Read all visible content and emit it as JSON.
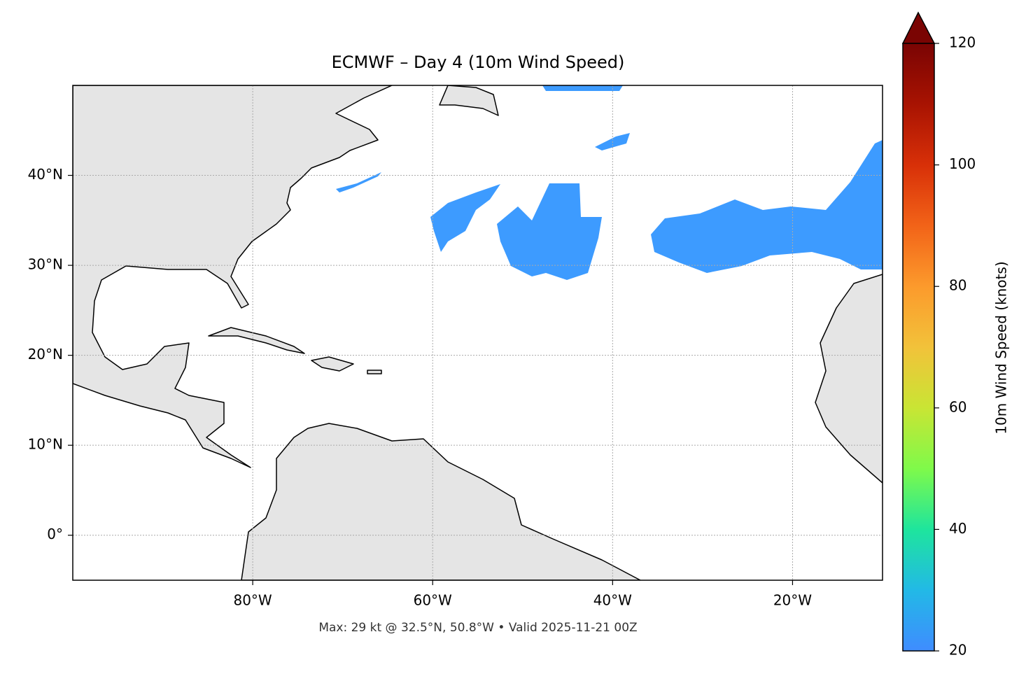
{
  "chart_data": {
    "type": "map",
    "title": "ECMWF – Day 4 (10m Wind Speed)",
    "annotation": "Max: 29 kt @ 32.5°N, 50.8°W • Valid 2025-11-21 00Z",
    "colorbar_label": "10m Wind Speed (knots)",
    "xlim": [
      -100,
      -10
    ],
    "ylim": [
      -5,
      50
    ],
    "xticks": [
      {
        "value": -80,
        "label": "80°W"
      },
      {
        "value": -60,
        "label": "60°W"
      },
      {
        "value": -40,
        "label": "40°W"
      },
      {
        "value": -20,
        "label": "20°W"
      }
    ],
    "yticks": [
      {
        "value": 0,
        "label": "0°"
      },
      {
        "value": 10,
        "label": "10°N"
      },
      {
        "value": 20,
        "label": "20°N"
      },
      {
        "value": 30,
        "label": "30°N"
      },
      {
        "value": 40,
        "label": "40°N"
      }
    ],
    "clim": [
      20,
      120
    ],
    "cticks": [
      20,
      40,
      60,
      80,
      100,
      120
    ],
    "grid": true
  }
}
